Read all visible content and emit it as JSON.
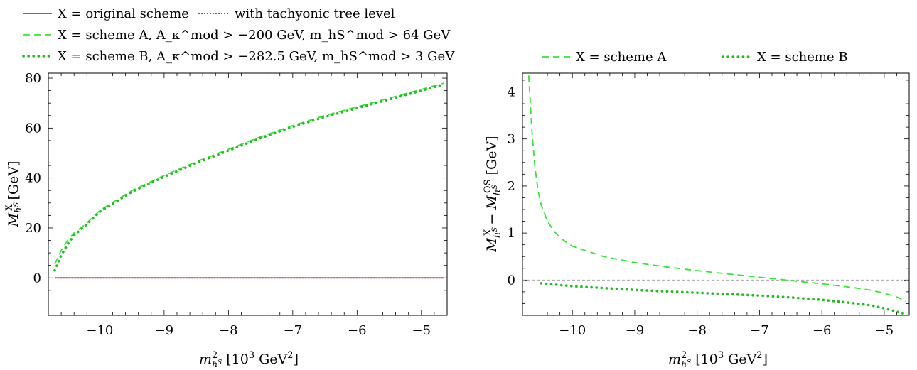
{
  "colors": {
    "original": "#a51c1c",
    "tachyonic": "#a51c1c",
    "schemeA": "#33e633",
    "schemeB": "#22bb22",
    "zero_line": "#999999"
  },
  "legend_top": [
    {
      "key": "original",
      "style": "solid",
      "text": "X = original scheme"
    },
    {
      "key": "tachyonic",
      "style": "dotted",
      "text": "with tachyonic tree level"
    },
    {
      "key": "schemeA",
      "style": "dashed",
      "text": "X = scheme A,  A_κ^mod > −200 GeV,  m_hS^mod > 64 GeV"
    },
    {
      "key": "schemeB",
      "style": "dotted-thick",
      "text": "X = scheme B,  A_κ^mod > −282.5 GeV,  m_hS^mod > 3 GeV"
    }
  ],
  "legend_right": [
    {
      "key": "schemeA",
      "style": "dashed",
      "text": "X = scheme A"
    },
    {
      "key": "schemeB",
      "style": "dotted-thick",
      "text": "X = scheme B"
    }
  ],
  "chart_data": [
    {
      "type": "line",
      "xlabel": "m_hS^2 [10^3 GeV^2]",
      "ylabel": "M_hS^X [GeV]",
      "xlim": [
        -10.8,
        -4.6
      ],
      "ylim": [
        -15,
        82
      ],
      "xticks": [
        -10,
        -9,
        -8,
        -7,
        -6,
        -5
      ],
      "yticks": [
        0,
        20,
        40,
        60,
        80
      ],
      "grid": false,
      "series": [
        {
          "key": "original",
          "style": "solid",
          "x": [
            -10.7,
            -4.65
          ],
          "y": [
            0,
            0
          ]
        },
        {
          "key": "tachyonic",
          "style": "dotted",
          "x": [
            -10.7,
            -4.65
          ],
          "y": [
            0,
            0
          ]
        },
        {
          "key": "schemeA",
          "style": "dashed",
          "x": [
            -10.7,
            -10.6,
            -10.5,
            -10.4,
            -10.2,
            -10.0,
            -9.5,
            -9.0,
            -8.5,
            -8.0,
            -7.5,
            -7.0,
            -6.5,
            -6.0,
            -5.5,
            -5.0,
            -4.65
          ],
          "y": [
            5.5,
            11,
            15,
            18,
            22,
            27,
            35,
            41,
            46.5,
            51.5,
            56.5,
            61,
            65,
            68.5,
            72,
            75.5,
            78
          ]
        },
        {
          "key": "schemeB",
          "style": "dotted-thick",
          "x": [
            -10.7,
            -10.6,
            -10.5,
            -10.4,
            -10.2,
            -10.0,
            -9.5,
            -9.0,
            -8.5,
            -8.0,
            -7.5,
            -7.0,
            -6.5,
            -6.0,
            -5.5,
            -5.0,
            -4.65
          ],
          "y": [
            3,
            9,
            13.5,
            17,
            21.5,
            26.5,
            34.5,
            40.5,
            46,
            51,
            56,
            60.5,
            64.5,
            68,
            71.5,
            75,
            77.5
          ]
        }
      ]
    },
    {
      "type": "line",
      "xlabel": "m_hS^2 [10^3 GeV^2]",
      "ylabel": "M_hS^X − M_hS^OS [GeV]",
      "xlim": [
        -10.8,
        -4.6
      ],
      "ylim": [
        -0.75,
        4.4
      ],
      "xticks": [
        -10,
        -9,
        -8,
        -7,
        -6,
        -5
      ],
      "yticks": [
        0,
        1,
        2,
        3,
        4
      ],
      "grid": false,
      "series": [
        {
          "key": "zero_line",
          "style": "thin-dashed",
          "x": [
            -10.8,
            -4.6
          ],
          "y": [
            0,
            0
          ]
        },
        {
          "key": "schemeA",
          "style": "dashed",
          "x": [
            -10.7,
            -10.65,
            -10.6,
            -10.55,
            -10.5,
            -10.4,
            -10.3,
            -10.2,
            -10.0,
            -9.5,
            -9.0,
            -8.5,
            -8.0,
            -7.5,
            -7.0,
            -6.5,
            -6.0,
            -5.5,
            -5.2,
            -5.0,
            -4.8,
            -4.65
          ],
          "y": [
            4.35,
            3.2,
            2.4,
            1.9,
            1.6,
            1.25,
            1.05,
            0.9,
            0.72,
            0.5,
            0.37,
            0.28,
            0.2,
            0.13,
            0.06,
            -0.01,
            -0.08,
            -0.16,
            -0.22,
            -0.28,
            -0.36,
            -0.45
          ]
        },
        {
          "key": "schemeB",
          "style": "dotted-thick",
          "x": [
            -10.5,
            -10.0,
            -9.5,
            -9.0,
            -8.5,
            -8.0,
            -7.5,
            -7.0,
            -6.5,
            -6.0,
            -5.5,
            -5.2,
            -5.0,
            -4.8,
            -4.65
          ],
          "y": [
            -0.07,
            -0.13,
            -0.17,
            -0.21,
            -0.24,
            -0.27,
            -0.3,
            -0.33,
            -0.37,
            -0.42,
            -0.49,
            -0.54,
            -0.6,
            -0.67,
            -0.73
          ]
        }
      ]
    }
  ]
}
